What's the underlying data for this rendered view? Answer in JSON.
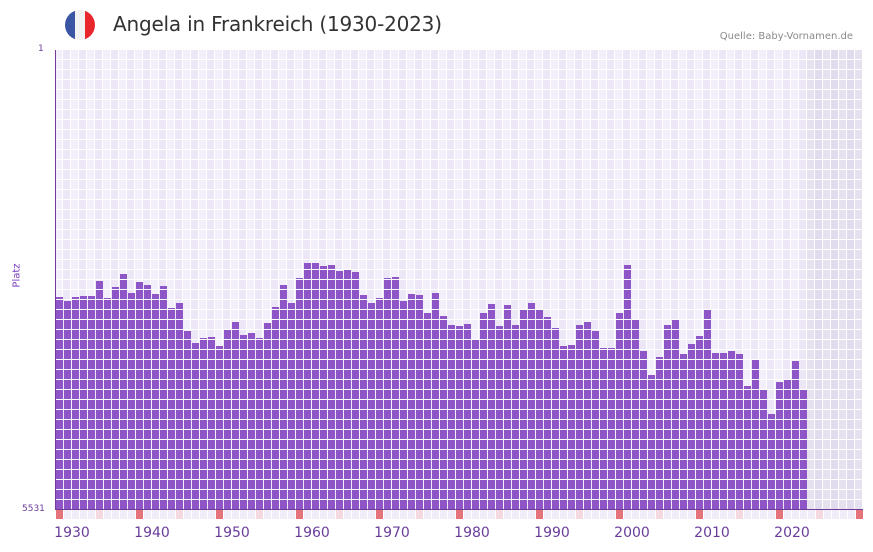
{
  "header": {
    "title": "Angela in Frankreich (1930-2023)",
    "source": "Quelle: Baby-Vornamen.de",
    "flag": {
      "icon": "france-flag-icon",
      "colors": [
        "#3a55a4",
        "#f2f2f2",
        "#e8262b"
      ]
    }
  },
  "axis": {
    "y_top": "1",
    "y_bottom": "5531",
    "y_label": "Platz",
    "x_labels": [
      "1930",
      "1940",
      "1950",
      "1960",
      "1970",
      "1980",
      "1990",
      "2000",
      "2010",
      "2020"
    ]
  },
  "colors": {
    "bar": "#8e55c6",
    "grid_a": "#f3effa",
    "grid_b": "#ece6f7",
    "future_a": "#e6e1ef",
    "future_b": "#e1dced",
    "tick_decade": "#e5737a",
    "tick_five": "#f5d9e1",
    "tick_other": "#f0ecf8",
    "axis_text": "#6a3d9a"
  },
  "chart_data": {
    "type": "bar",
    "title": "Angela in Frankreich (1930-2023)",
    "xlabel": "",
    "ylabel": "Platz",
    "ylim": [
      5531,
      1
    ],
    "y_inverted": true,
    "x_range": [
      1930,
      2030
    ],
    "grid": true,
    "legend": null,
    "annotations": [
      "Quelle: Baby-Vornamen.de"
    ],
    "categories": [
      1930,
      1931,
      1932,
      1933,
      1934,
      1935,
      1936,
      1937,
      1938,
      1939,
      1940,
      1941,
      1942,
      1943,
      1944,
      1945,
      1946,
      1947,
      1948,
      1949,
      1950,
      1951,
      1952,
      1953,
      1954,
      1955,
      1956,
      1957,
      1958,
      1959,
      1960,
      1961,
      1962,
      1963,
      1964,
      1965,
      1966,
      1967,
      1968,
      1969,
      1970,
      1971,
      1972,
      1973,
      1974,
      1975,
      1976,
      1977,
      1978,
      1979,
      1980,
      1981,
      1982,
      1983,
      1984,
      1985,
      1986,
      1987,
      1988,
      1989,
      1990,
      1991,
      1992,
      1993,
      1994,
      1995,
      1996,
      1997,
      1998,
      1999,
      2000,
      2001,
      2002,
      2003,
      2004,
      2005,
      2006,
      2007,
      2008,
      2009,
      2010,
      2011,
      2012,
      2013,
      2014,
      2015,
      2016,
      2017,
      2018,
      2019,
      2020,
      2021,
      2022,
      2023
    ],
    "values": [
      2970,
      3018,
      2970,
      2958,
      2958,
      2778,
      2982,
      2850,
      2694,
      2922,
      2790,
      2826,
      2934,
      2838,
      3102,
      3042,
      3379,
      3523,
      3463,
      3451,
      3559,
      3367,
      3270,
      3427,
      3403,
      3463,
      3282,
      3090,
      2826,
      3042,
      2742,
      2561,
      2561,
      2597,
      2585,
      2657,
      2645,
      2669,
      2946,
      3042,
      2982,
      2742,
      2730,
      3018,
      2934,
      2946,
      3162,
      2922,
      3198,
      3307,
      3319,
      3295,
      3487,
      3162,
      3054,
      3319,
      3066,
      3307,
      3114,
      3042,
      3126,
      3210,
      3343,
      3559,
      3547,
      3307,
      3270,
      3379,
      3583,
      3583,
      3162,
      2585,
      3246,
      3619,
      3908,
      3691,
      3307,
      3246,
      3655,
      3535,
      3439,
      3126,
      3643,
      3643,
      3619,
      3655,
      4040,
      3715,
      4076,
      4376,
      3992,
      3968,
      3739,
      4076
    ]
  }
}
